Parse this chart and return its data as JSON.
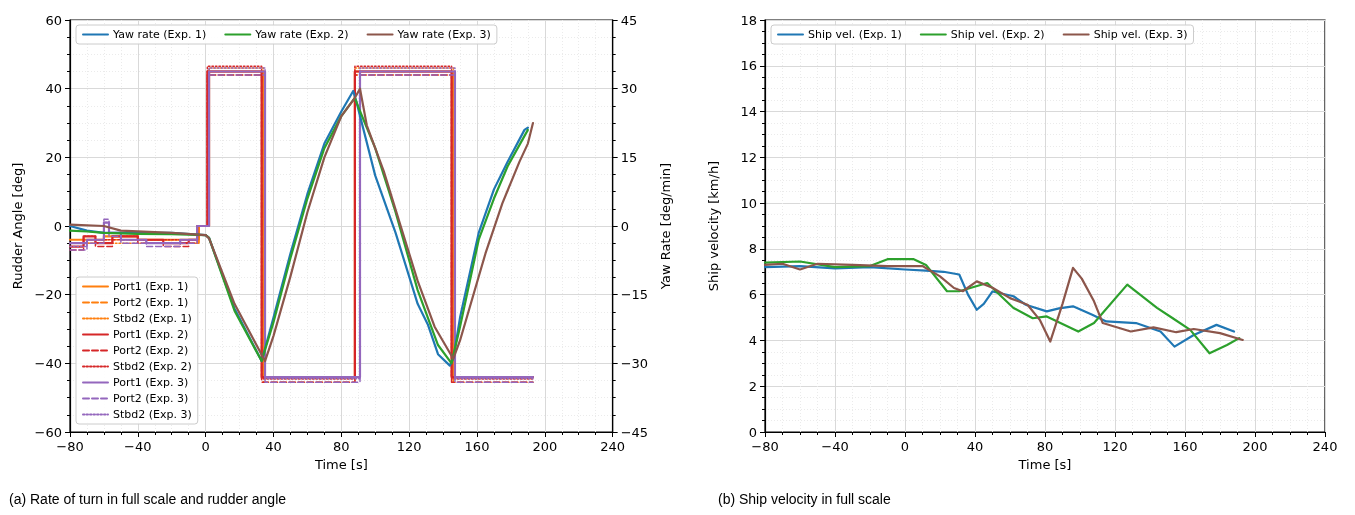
{
  "chart_data": [
    {
      "type": "line",
      "title": "(a) Rate of turn in full scale and rudder angle",
      "xlabel": "Time [s]",
      "ylabel": "Rudder Angle [deg]",
      "y2label": "Yaw Rate [deg/min]",
      "xlim": [
        -80,
        240
      ],
      "xticks": [
        -80,
        -40,
        0,
        40,
        80,
        120,
        160,
        200,
        240
      ],
      "ylim": [
        -60,
        60
      ],
      "yticks": [
        -60,
        -40,
        -20,
        0,
        20,
        40,
        60
      ],
      "y2lim": [
        -45,
        45
      ],
      "y2ticks": [
        -45,
        -30,
        -15,
        0,
        15,
        30,
        45
      ],
      "grid": true,
      "legend": "top left",
      "series": [
        {
          "name": "Yaw rate (Exp. 1)",
          "color": "#1f77b4",
          "axis": "y2",
          "x": [
            -80,
            -70,
            -60,
            -40,
            -20,
            0,
            2,
            17,
            33,
            40,
            50,
            60,
            70,
            80,
            87,
            89,
            100,
            112,
            125,
            131,
            137,
            144,
            146,
            150,
            161,
            170,
            178,
            188,
            190
          ],
          "values": [
            0,
            -1,
            -1.5,
            -1.5,
            -1.5,
            -2,
            -2.6,
            -18,
            -29.5,
            -20,
            -6,
            7,
            18,
            25,
            29.5,
            27,
            11,
            -1.5,
            -17,
            -21.5,
            -28,
            -30.5,
            -29,
            -20,
            -1.5,
            8,
            14,
            21,
            21.5
          ]
        },
        {
          "name": "Yaw rate (Exp. 2)",
          "color": "#2ca02c",
          "axis": "y2",
          "x": [
            -80,
            -70,
            -60,
            -40,
            -20,
            0,
            2,
            17,
            33,
            40,
            50,
            60,
            70,
            80,
            88,
            90,
            100,
            112,
            125,
            137,
            145,
            150,
            161,
            170,
            178,
            190
          ],
          "values": [
            -1,
            -1.2,
            -1.5,
            -1.7,
            -1.8,
            -2,
            -2.6,
            -18.5,
            -29.5,
            -21,
            -7,
            6,
            17,
            24,
            28,
            26,
            17,
            3,
            -14,
            -26,
            -30,
            -22,
            -3,
            6,
            13,
            21
          ]
        },
        {
          "name": "Yaw rate (Exp. 3)",
          "color": "#8c564b",
          "axis": "y2",
          "x": [
            -80,
            -60,
            -50,
            -20,
            0,
            2,
            17,
            35,
            40,
            50,
            60,
            70,
            80,
            88,
            91,
            95,
            105,
            115,
            125,
            135,
            146,
            150,
            165,
            175,
            185,
            190,
            193
          ],
          "values": [
            0.3,
            0,
            -1,
            -1.5,
            -2,
            -2.7,
            -17,
            -29.5,
            -24,
            -11,
            3,
            15,
            24,
            28,
            30,
            22,
            12,
            0,
            -12,
            -22,
            -29,
            -25,
            -6,
            5,
            14,
            18,
            22.5
          ]
        },
        {
          "name": "Port1 (Exp. 1)",
          "color": "#ff7f0e",
          "type": "step",
          "line_style": "solid",
          "x": [
            -80,
            -60,
            -40,
            -20,
            -4,
            2,
            34,
            88,
            146,
            193
          ],
          "values": [
            -4,
            -3,
            -4,
            -4,
            0,
            45,
            -44,
            45,
            -44,
            -44
          ]
        },
        {
          "name": "Port2 (Exp. 1)",
          "color": "#ff7f0e",
          "type": "step",
          "line_style": "dashed",
          "x": [
            -80,
            -60,
            -40,
            -20,
            -4,
            2,
            34,
            88,
            146,
            193
          ],
          "values": [
            -5,
            -4,
            -4,
            -5,
            0,
            44,
            -45.5,
            44,
            -45.5,
            -45.5
          ]
        },
        {
          "name": "Stbd2 (Exp. 1)",
          "color": "#ff7f0e",
          "type": "step",
          "line_style": "dotted",
          "x": [
            -80,
            -60,
            -40,
            -20,
            -4,
            2,
            34,
            88,
            146,
            193
          ],
          "values": [
            -5,
            -5,
            -5,
            -5,
            0,
            46,
            -44.5,
            46,
            -44.5,
            -44.5
          ]
        },
        {
          "name": "Port1 (Exp. 2)",
          "color": "#d62728",
          "type": "step",
          "line_style": "solid",
          "x": [
            -80,
            -72,
            -65,
            -55,
            -40,
            -25,
            -10,
            -5,
            1,
            33,
            88,
            145,
            193
          ],
          "values": [
            -6,
            -3,
            -5,
            -3,
            -4,
            -5,
            -4,
            0,
            45,
            -44,
            45,
            -44,
            -44
          ]
        },
        {
          "name": "Port2 (Exp. 2)",
          "color": "#d62728",
          "type": "step",
          "line_style": "dashed",
          "x": [
            -80,
            -72,
            -65,
            -55,
            -40,
            -25,
            -10,
            -5,
            1,
            33,
            88,
            145,
            193
          ],
          "values": [
            -7,
            -4,
            -6,
            -4,
            -5,
            -6,
            -5,
            0,
            44,
            -45.5,
            44,
            -45.5,
            -45.5
          ]
        },
        {
          "name": "Stbd2 (Exp. 2)",
          "color": "#d62728",
          "type": "step",
          "line_style": "dotted",
          "x": [
            -80,
            -72,
            -65,
            -55,
            -40,
            -25,
            -10,
            -5,
            1,
            33,
            88,
            145,
            193
          ],
          "values": [
            -5,
            -3,
            -4,
            -3,
            -4,
            -4,
            -4,
            0,
            46.5,
            -44.5,
            46.5,
            -44.5,
            -44.5
          ]
        },
        {
          "name": "Port1 (Exp. 3)",
          "color": "#9467bd",
          "type": "step",
          "line_style": "solid",
          "x": [
            -80,
            -70,
            -60,
            -57,
            -50,
            -35,
            -15,
            -5,
            2,
            35,
            91,
            147,
            193
          ],
          "values": [
            -5,
            -4,
            1,
            -2,
            -4,
            -5,
            -4,
            0,
            45,
            -44,
            45,
            -44,
            -44
          ]
        },
        {
          "name": "Port2 (Exp. 3)",
          "color": "#9467bd",
          "type": "step",
          "line_style": "dashed",
          "x": [
            -80,
            -70,
            -60,
            -57,
            -50,
            -35,
            -15,
            -5,
            2,
            35,
            91,
            147,
            193
          ],
          "values": [
            -7,
            -5,
            2,
            -3,
            -5,
            -6,
            -5,
            0,
            44,
            -45.5,
            44,
            -45.5,
            -45.5
          ]
        },
        {
          "name": "Stbd2 (Exp. 3)",
          "color": "#9467bd",
          "type": "step",
          "line_style": "dotted",
          "x": [
            -80,
            -70,
            -60,
            -57,
            -50,
            -35,
            -15,
            -5,
            2,
            35,
            91,
            147,
            193
          ],
          "values": [
            -6,
            -4,
            1,
            -2,
            -4,
            -5,
            -4,
            0,
            46,
            -44.5,
            46,
            -44.5,
            -44.5
          ]
        }
      ]
    },
    {
      "type": "line",
      "title": "(b) Ship velocity in full scale",
      "xlabel": "Time [s]",
      "ylabel": "Ship velocity [km/h]",
      "xlim": [
        -80,
        240
      ],
      "xticks": [
        -80,
        -40,
        0,
        40,
        80,
        120,
        160,
        200,
        240
      ],
      "ylim": [
        0,
        18
      ],
      "yticks": [
        0,
        2,
        4,
        6,
        8,
        10,
        12,
        14,
        16,
        18
      ],
      "grid": true,
      "legend": "top left",
      "series": [
        {
          "name": "Ship vel. (Exp. 1)",
          "color": "#1f77b4",
          "x": [
            -80,
            -60,
            -40,
            -20,
            0,
            12,
            22,
            31,
            36,
            41,
            45,
            50,
            62,
            69,
            81,
            88,
            96,
            107,
            115,
            132,
            146,
            154,
            165,
            178,
            188
          ],
          "values": [
            7.2,
            7.25,
            7.15,
            7.2,
            7.1,
            7.05,
            7.0,
            6.88,
            6.0,
            5.34,
            5.6,
            6.14,
            5.93,
            5.56,
            5.27,
            5.4,
            5.49,
            5.12,
            4.83,
            4.76,
            4.39,
            3.73,
            4.24,
            4.68,
            4.39
          ]
        },
        {
          "name": "Ship vel. (Exp. 2)",
          "color": "#2ca02c",
          "x": [
            -80,
            -60,
            -40,
            -20,
            -10,
            5,
            12,
            24,
            31,
            47,
            62,
            73,
            81,
            99,
            108,
            127,
            144,
            153,
            163,
            174,
            184,
            191
          ],
          "values": [
            7.4,
            7.45,
            7.2,
            7.25,
            7.55,
            7.55,
            7.3,
            6.15,
            6.15,
            6.51,
            5.42,
            4.97,
            5.05,
            4.39,
            4.76,
            6.44,
            5.42,
            4.97,
            4.46,
            3.44,
            3.8,
            4.1
          ]
        },
        {
          "name": "Ship vel. (Exp. 3)",
          "color": "#8c564b",
          "x": [
            -80,
            -70,
            -60,
            -50,
            -30,
            -10,
            10,
            20,
            28,
            33,
            41,
            50,
            60,
            70,
            77,
            83,
            90,
            96,
            101,
            108,
            113,
            129,
            142,
            155,
            165,
            180,
            193
          ],
          "values": [
            7.3,
            7.35,
            7.1,
            7.35,
            7.3,
            7.25,
            7.25,
            6.8,
            6.29,
            6.15,
            6.58,
            6.3,
            5.85,
            5.56,
            4.9,
            3.95,
            5.6,
            7.17,
            6.7,
            5.71,
            4.76,
            4.39,
            4.57,
            4.36,
            4.5,
            4.32,
            4.02
          ]
        }
      ]
    }
  ]
}
